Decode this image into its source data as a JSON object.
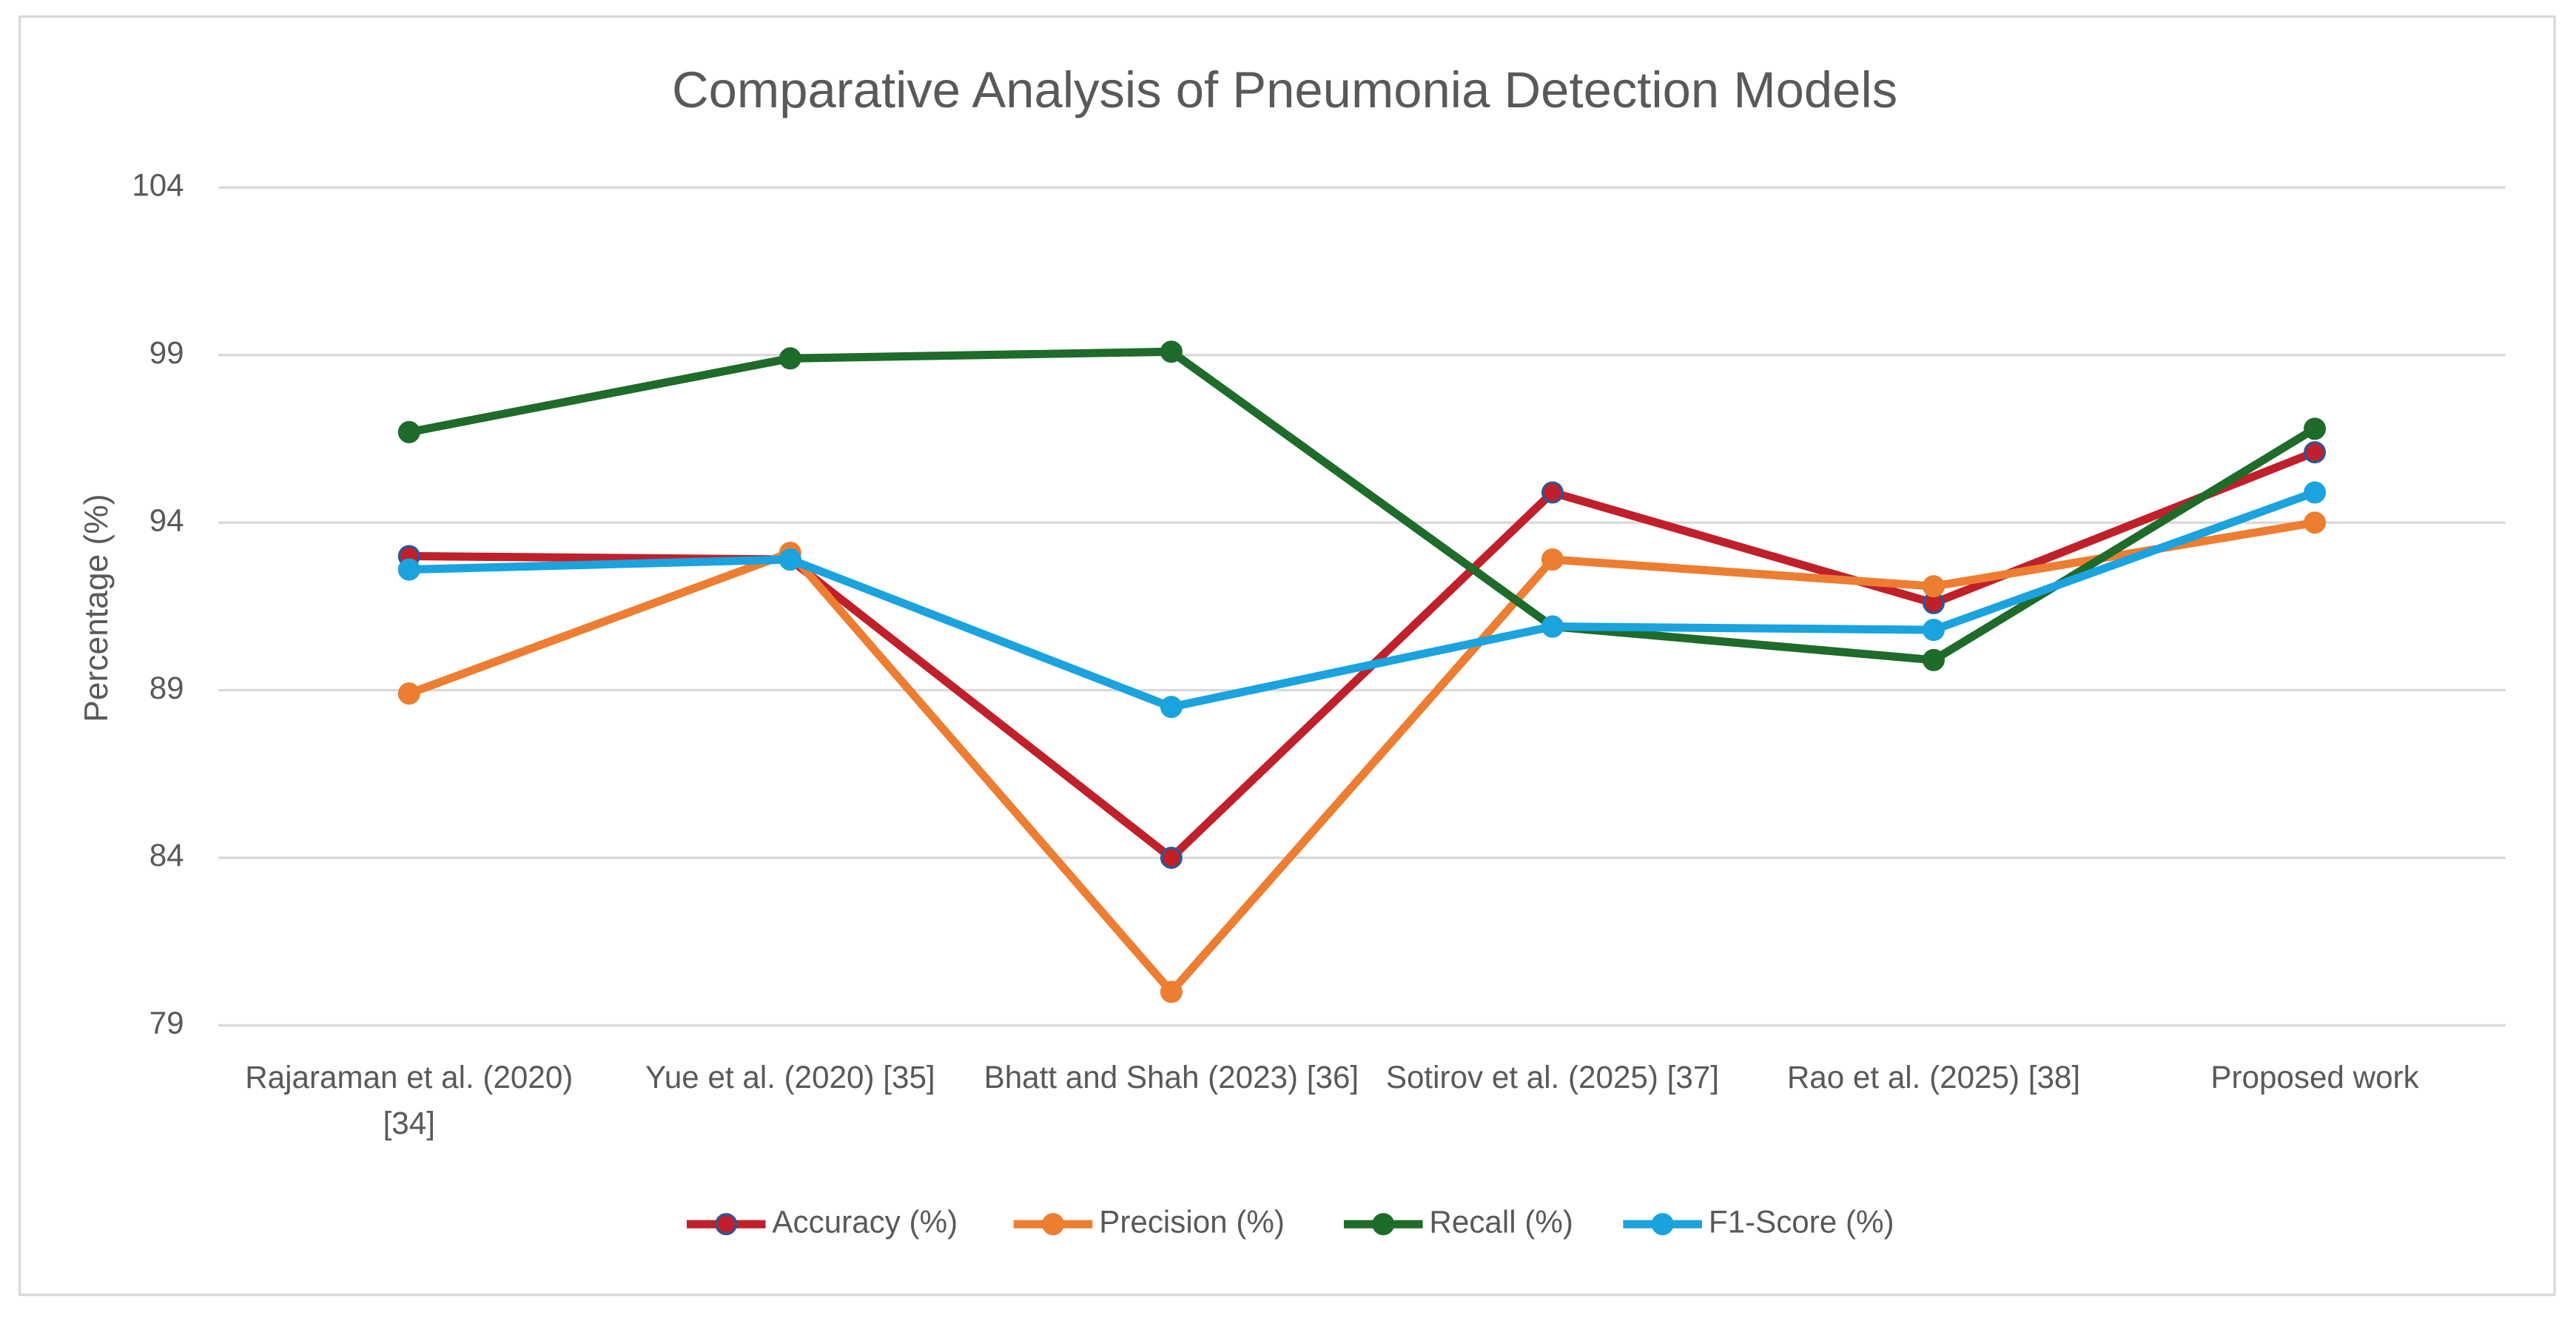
{
  "chart_data": {
    "type": "line",
    "title": "Comparative Analysis of Pneumonia Detection Models",
    "y_label": "Percentage (%)",
    "categories": [
      "Rajaraman et al. (2020) [34]",
      "Yue et al. (2020) [35]",
      "Bhatt and Shah (2023) [36]",
      "Sotirov et al. (2025) [37]",
      "Rao et al. (2025) [38]",
      "Proposed work"
    ],
    "series": [
      {
        "name": "Accuracy (%)",
        "color": "#c0202a",
        "values": [
          93.0,
          92.9,
          84.0,
          94.9,
          91.6,
          96.1
        ]
      },
      {
        "name": "Precision (%)",
        "color": "#ed7d31",
        "values": [
          88.9,
          93.1,
          80.0,
          92.9,
          92.1,
          94.0
        ]
      },
      {
        "name": "Recall (%)",
        "color": "#1e6b2a",
        "values": [
          96.7,
          98.9,
          99.1,
          90.9,
          89.9,
          96.8
        ]
      },
      {
        "name": "F1-Score (%)",
        "color": "#1aa3de",
        "values": [
          92.6,
          92.9,
          88.5,
          90.9,
          90.8,
          94.9
        ]
      }
    ],
    "ylim": [
      79,
      104
    ],
    "yticks": [
      79,
      84,
      89,
      94,
      99,
      104
    ],
    "grid": true,
    "legend": "bottom"
  }
}
